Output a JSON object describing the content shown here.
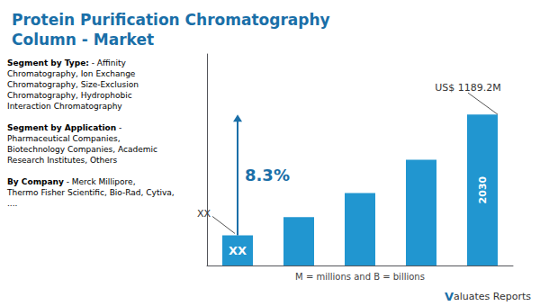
{
  "chart_data": {
    "type": "bar",
    "title": "Protein Purification Chromatography\nColumn - Market",
    "categories": [
      null,
      null,
      null,
      null,
      null
    ],
    "values": [
      1.0,
      1.6,
      2.4,
      3.5,
      5.0
    ],
    "color": "#2196d0",
    "ylim": [
      0,
      7.0
    ],
    "grid": false,
    "tick_labels": false,
    "annotations": [
      "XX",
      "2030",
      "8.3%",
      "XX",
      "US$ 1189.2M",
      "M = millions and B = billions",
      "Valuates Reports",
      "Segment by Type:",
      " - Affinity\nChromatography, Ion Exchange\nChromatography, Size-Exclusion\nChromatography, Hydrophobic\nInteraction Chromatography",
      "Segment by Application",
      " -\nPharmaceutical Companies,\nBiotechnology Companies, Academic\nResearch Institutes, Others",
      "By Company",
      " - Merck Millipore,\nThermo Fisher Scientific, Bio-Rad, Cytiva,\n...."
    ]
  }
}
